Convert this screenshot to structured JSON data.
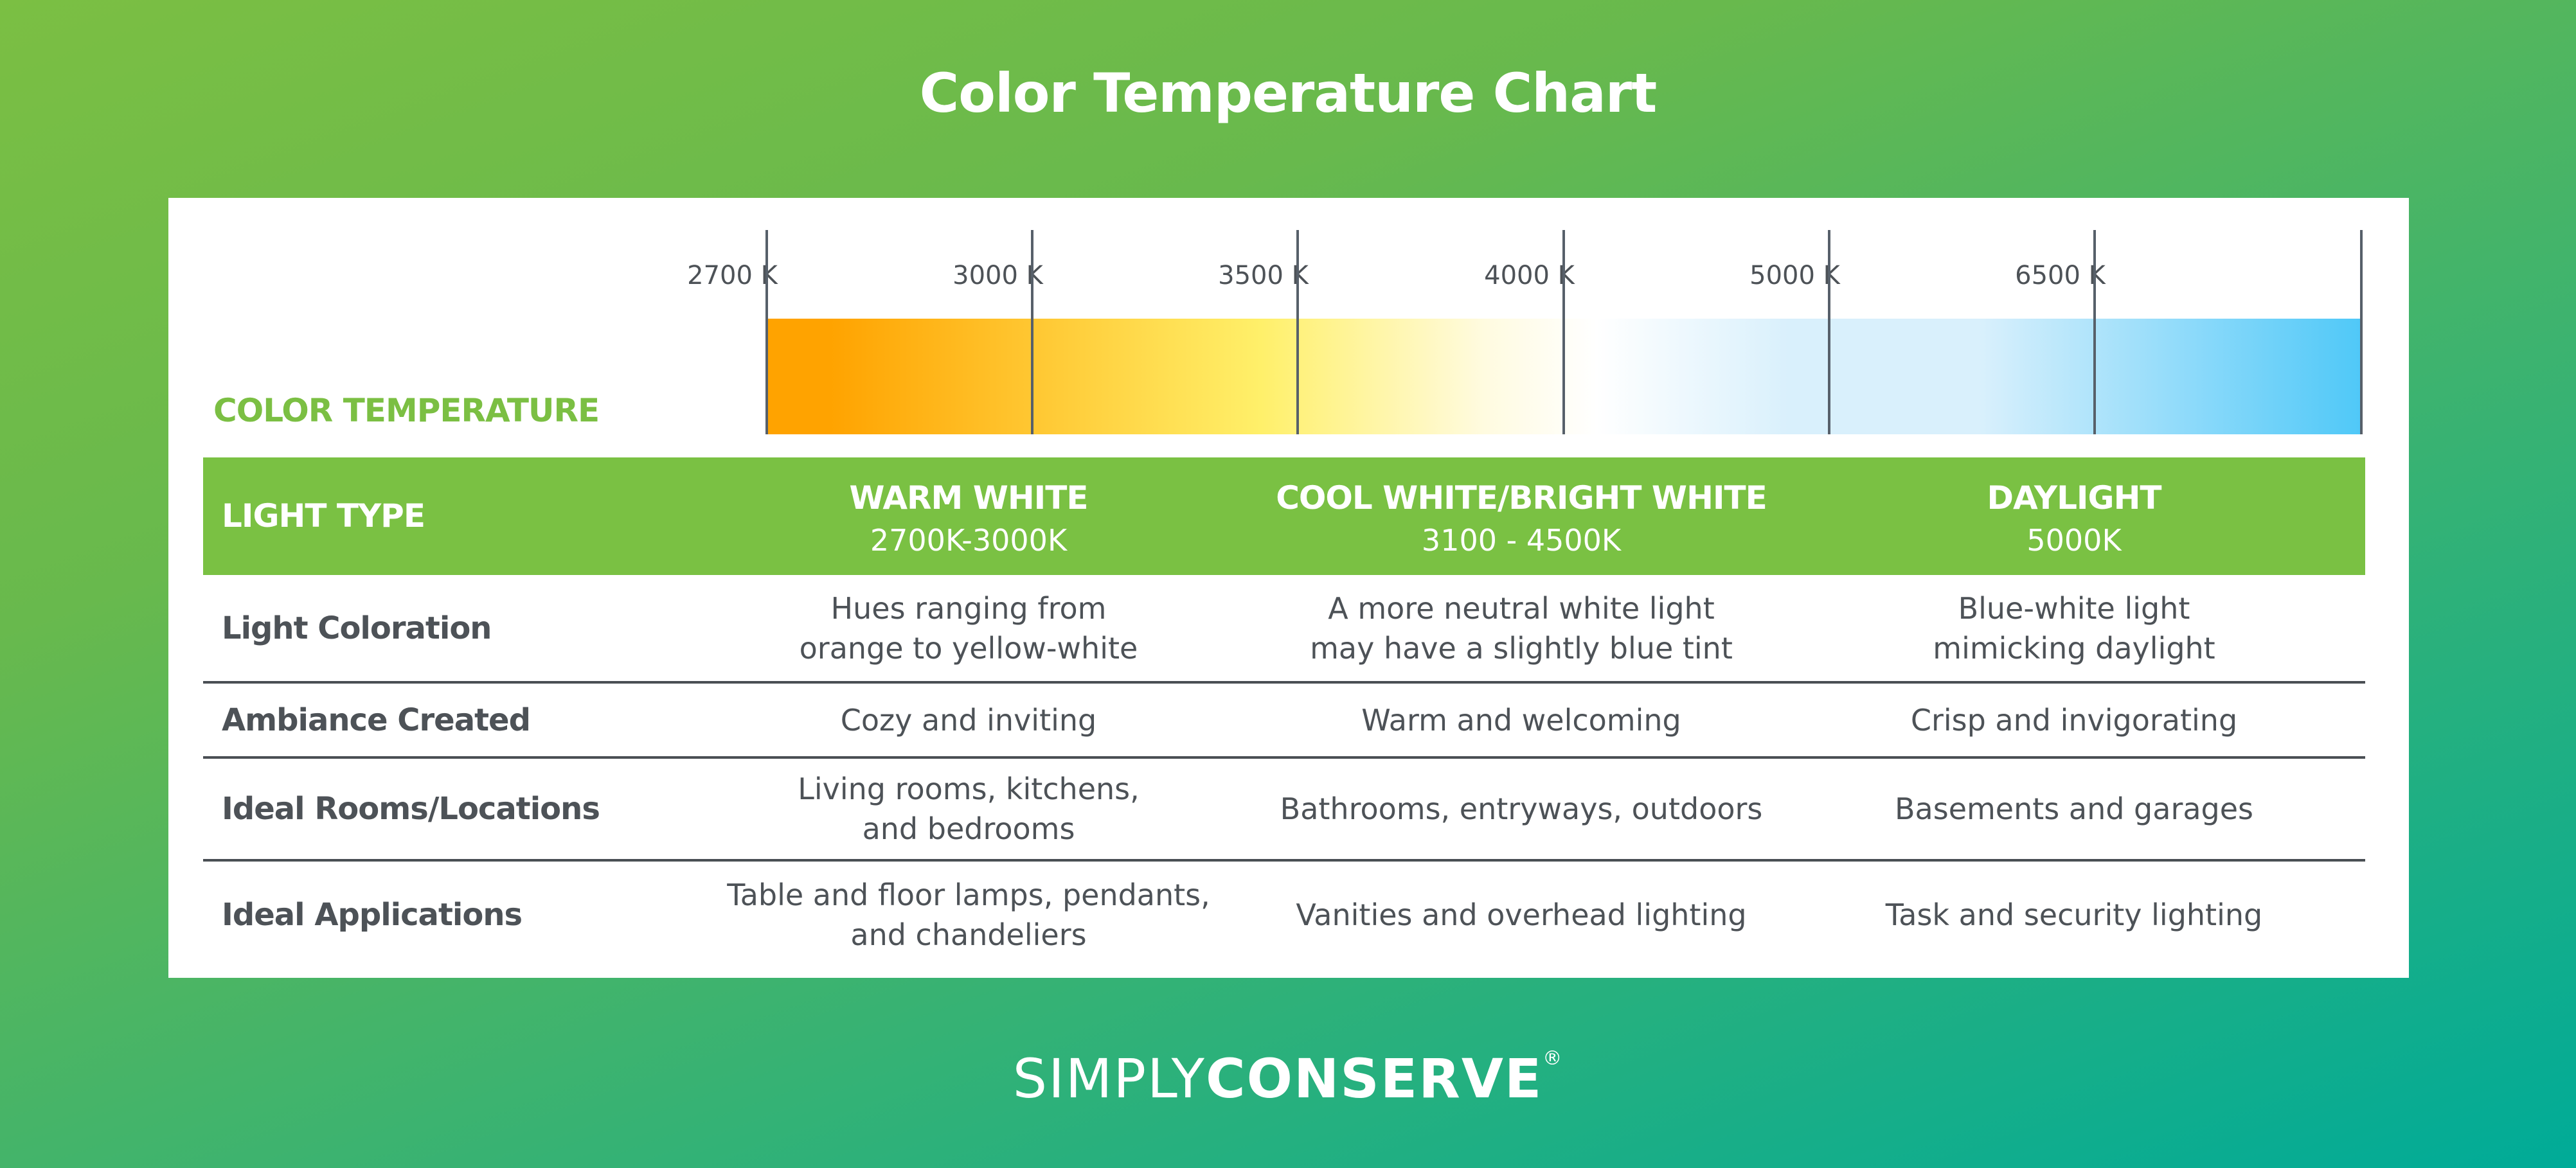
{
  "title": "Color Temperature Chart",
  "color_temperature_label": "COLOR TEMPERATURE",
  "kelvin_steps": [
    "2700 K",
    "3000 K",
    "3500 K",
    "4000 K",
    "5000 K",
    "6500 K"
  ],
  "spectrum_colors": {
    "orange": "#ffa300",
    "yellow": "#fff06a",
    "white": "#ffffff",
    "light_blue": "#d9f0fc",
    "sky_blue": "#4fc8f8"
  },
  "header": {
    "label": "LIGHT TYPE",
    "columns": [
      {
        "name": "WARM WHITE",
        "range": "2700K-3000K"
      },
      {
        "name": "COOL WHITE/BRIGHT WHITE",
        "range": "3100 - 4500K"
      },
      {
        "name": "DAYLIGHT",
        "range": "5000K"
      }
    ]
  },
  "rows": [
    {
      "label": "Light Coloration",
      "cells": [
        "Hues ranging from\norange to yellow-white",
        "A more neutral white light\nmay have a slightly blue tint",
        "Blue-white light\nmimicking daylight"
      ]
    },
    {
      "label": "Ambiance Created",
      "cells": [
        "Cozy and inviting",
        "Warm and welcoming",
        "Crisp and invigorating"
      ]
    },
    {
      "label": "Ideal Rooms/Locations",
      "cells": [
        "Living rooms, kitchens,\nand bedrooms",
        "Bathrooms, entryways, outdoors",
        "Basements and garages"
      ]
    },
    {
      "label": "Ideal Applications",
      "cells": [
        "Table and floor lamps, pendants,\nand chandeliers",
        "Vanities and overhead lighting",
        "Task and security lighting"
      ]
    }
  ],
  "brand": {
    "light": "SIMPLY",
    "bold": "CONSERVE",
    "mark": "®"
  },
  "colors": {
    "accent_green": "#7ac143",
    "text_gray": "#4d5257",
    "teal": "#00ab98"
  }
}
